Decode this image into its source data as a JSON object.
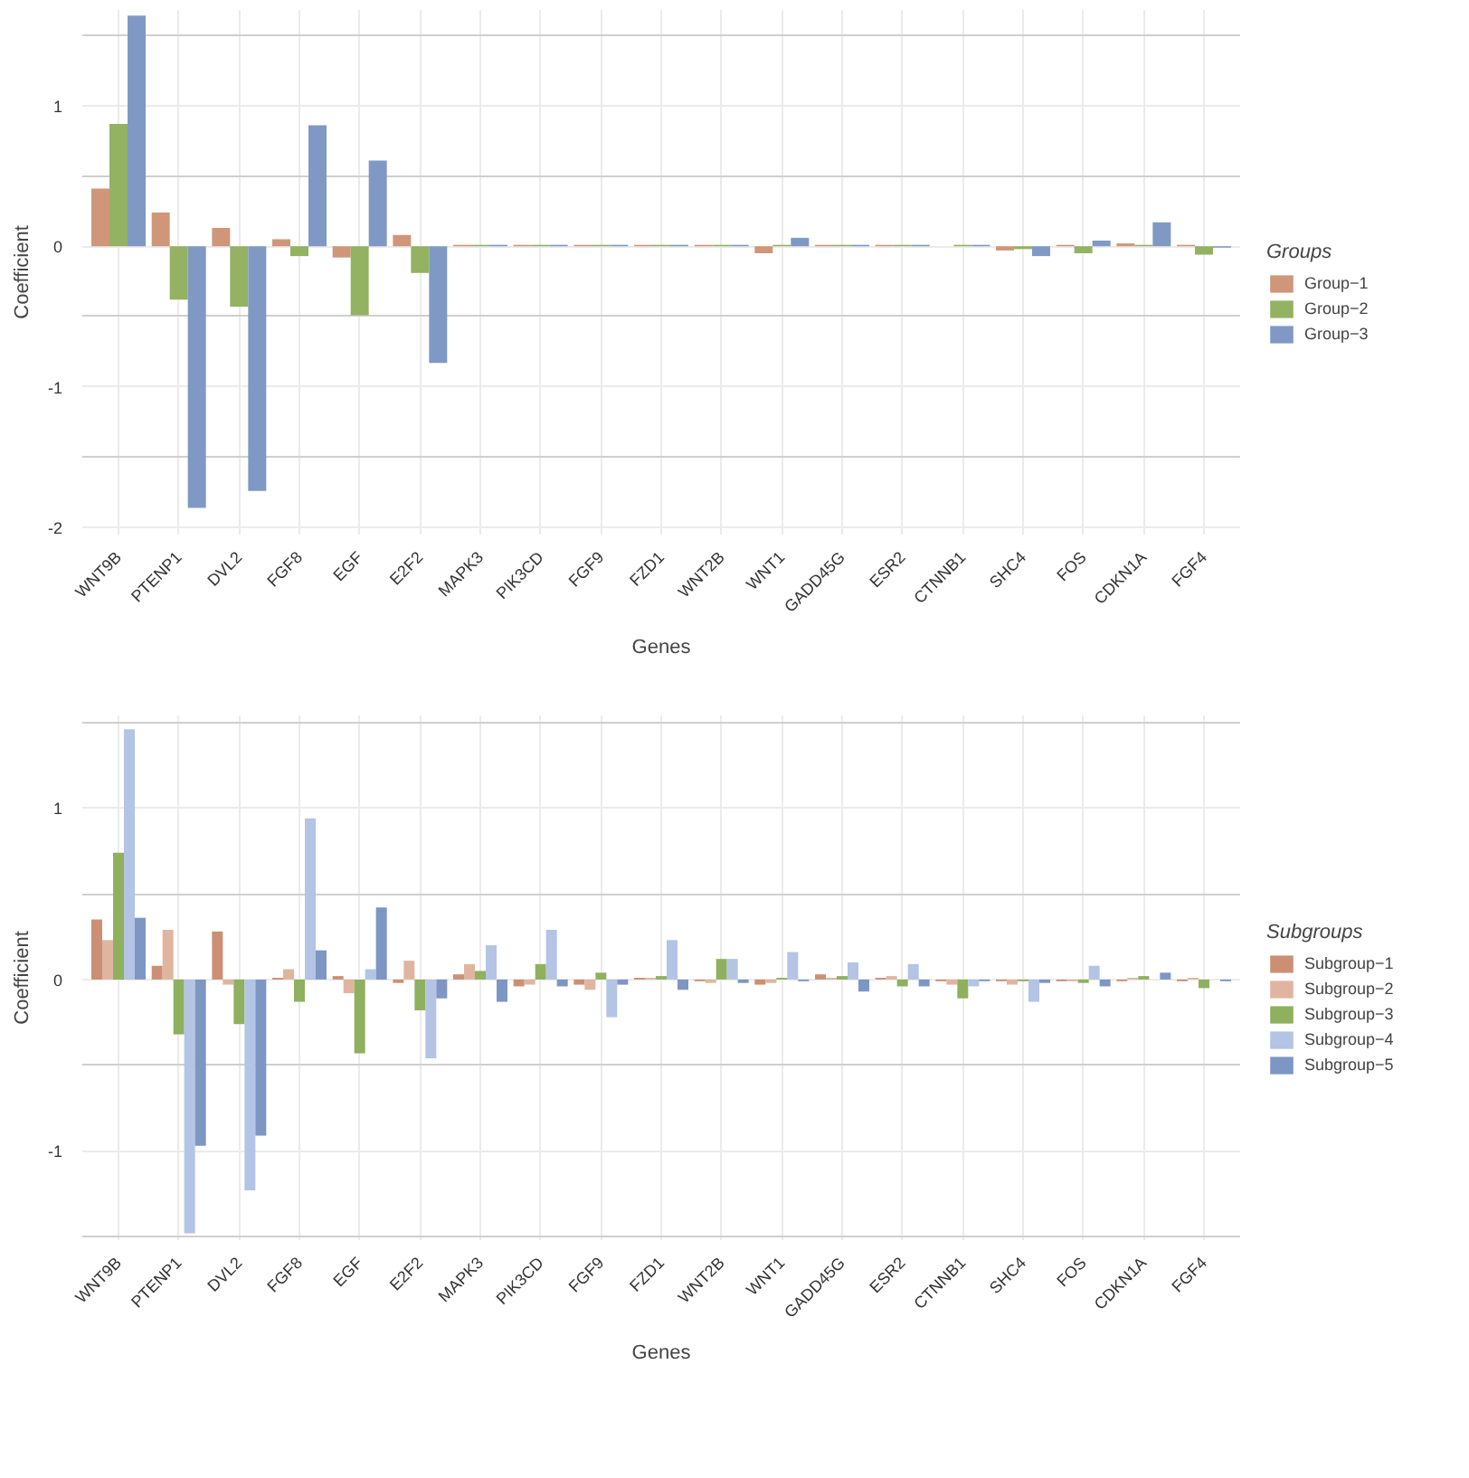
{
  "chart_data": [
    {
      "type": "bar",
      "xlabel": "Genes",
      "ylabel": "Coefficient",
      "legend_title": "Groups",
      "legend": "right",
      "grid": true,
      "categories": [
        "WNT9B",
        "PTENP1",
        "DVL2",
        "FGF8",
        "EGF",
        "E2F2",
        "MAPK3",
        "PIK3CD",
        "FGF9",
        "FZD1",
        "WNT2B",
        "WNT1",
        "GADD45G",
        "ESR2",
        "CTNNB1",
        "SHC4",
        "FOS",
        "CDKN1A",
        "FGF4"
      ],
      "ylim": [
        -2.05,
        1.68
      ],
      "yticks": [
        -2,
        -1,
        0,
        1
      ],
      "series": [
        {
          "name": "Group−1",
          "color": "#d0967a",
          "values": [
            0.41,
            0.24,
            0.13,
            0.05,
            -0.08,
            0.08,
            0.01,
            0.01,
            0.01,
            0.01,
            0.01,
            -0.05,
            0.01,
            0.01,
            null,
            -0.03,
            0.01,
            0.02,
            0.01
          ]
        },
        {
          "name": "Group−2",
          "color": "#93b262",
          "values": [
            0.87,
            -0.38,
            -0.43,
            -0.07,
            -0.49,
            -0.19,
            0.01,
            0.01,
            0.01,
            0.01,
            0.01,
            0.01,
            0.01,
            0.01,
            0.01,
            -0.02,
            -0.05,
            0.01,
            -0.06
          ]
        },
        {
          "name": "Group−3",
          "color": "#7f99c4",
          "values": [
            1.64,
            -1.86,
            -1.74,
            0.86,
            0.61,
            -0.83,
            0.01,
            0.01,
            0.01,
            0.01,
            0.01,
            0.06,
            0.01,
            0.01,
            0.01,
            -0.07,
            0.04,
            0.17,
            -0.01
          ]
        }
      ]
    },
    {
      "type": "bar",
      "xlabel": "Genes",
      "ylabel": "Coefficient",
      "legend_title": "Subgroups",
      "legend": "right",
      "grid": true,
      "categories": [
        "WNT9B",
        "PTENP1",
        "DVL2",
        "FGF8",
        "EGF",
        "E2F2",
        "MAPK3",
        "PIK3CD",
        "FGF9",
        "FZD1",
        "WNT2B",
        "WNT1",
        "GADD45G",
        "ESR2",
        "CTNNB1",
        "SHC4",
        "FOS",
        "CDKN1A",
        "FGF4"
      ],
      "ylim": [
        -1.52,
        1.54
      ],
      "yticks": [
        -1,
        0,
        1
      ],
      "series": [
        {
          "name": "Subgroup−1",
          "color": "#cc8f74",
          "values": [
            0.35,
            0.08,
            0.28,
            0.01,
            0.02,
            -0.02,
            0.03,
            -0.04,
            -0.03,
            0.01,
            -0.01,
            -0.03,
            0.03,
            0.01,
            -0.01,
            -0.01,
            -0.01,
            -0.01,
            -0.01
          ]
        },
        {
          "name": "Subgroup−2",
          "color": "#e0b5a0",
          "values": [
            0.23,
            0.29,
            -0.03,
            0.06,
            -0.08,
            0.11,
            0.09,
            -0.03,
            -0.06,
            0.01,
            -0.02,
            -0.02,
            0.01,
            0.02,
            -0.03,
            -0.03,
            -0.01,
            0.01,
            0.01
          ]
        },
        {
          "name": "Subgroup−3",
          "color": "#8fb05e",
          "values": [
            0.74,
            -0.32,
            -0.26,
            -0.13,
            -0.43,
            -0.18,
            0.05,
            0.09,
            0.04,
            0.02,
            0.12,
            0.01,
            0.02,
            -0.04,
            -0.11,
            -0.01,
            -0.02,
            0.02,
            -0.05
          ]
        },
        {
          "name": "Subgroup−4",
          "color": "#b3c4e4",
          "values": [
            1.46,
            -1.48,
            -1.23,
            0.94,
            0.06,
            -0.46,
            0.2,
            0.29,
            -0.22,
            0.23,
            0.12,
            0.16,
            0.1,
            0.09,
            -0.04,
            -0.13,
            0.08,
            null,
            null
          ]
        },
        {
          "name": "Subgroup−5",
          "color": "#7d96c3",
          "values": [
            0.36,
            -0.97,
            -0.91,
            0.17,
            0.42,
            -0.11,
            -0.13,
            -0.04,
            -0.03,
            -0.06,
            -0.02,
            -0.01,
            -0.07,
            -0.04,
            -0.01,
            -0.02,
            -0.04,
            0.04,
            -0.01
          ]
        }
      ]
    }
  ]
}
